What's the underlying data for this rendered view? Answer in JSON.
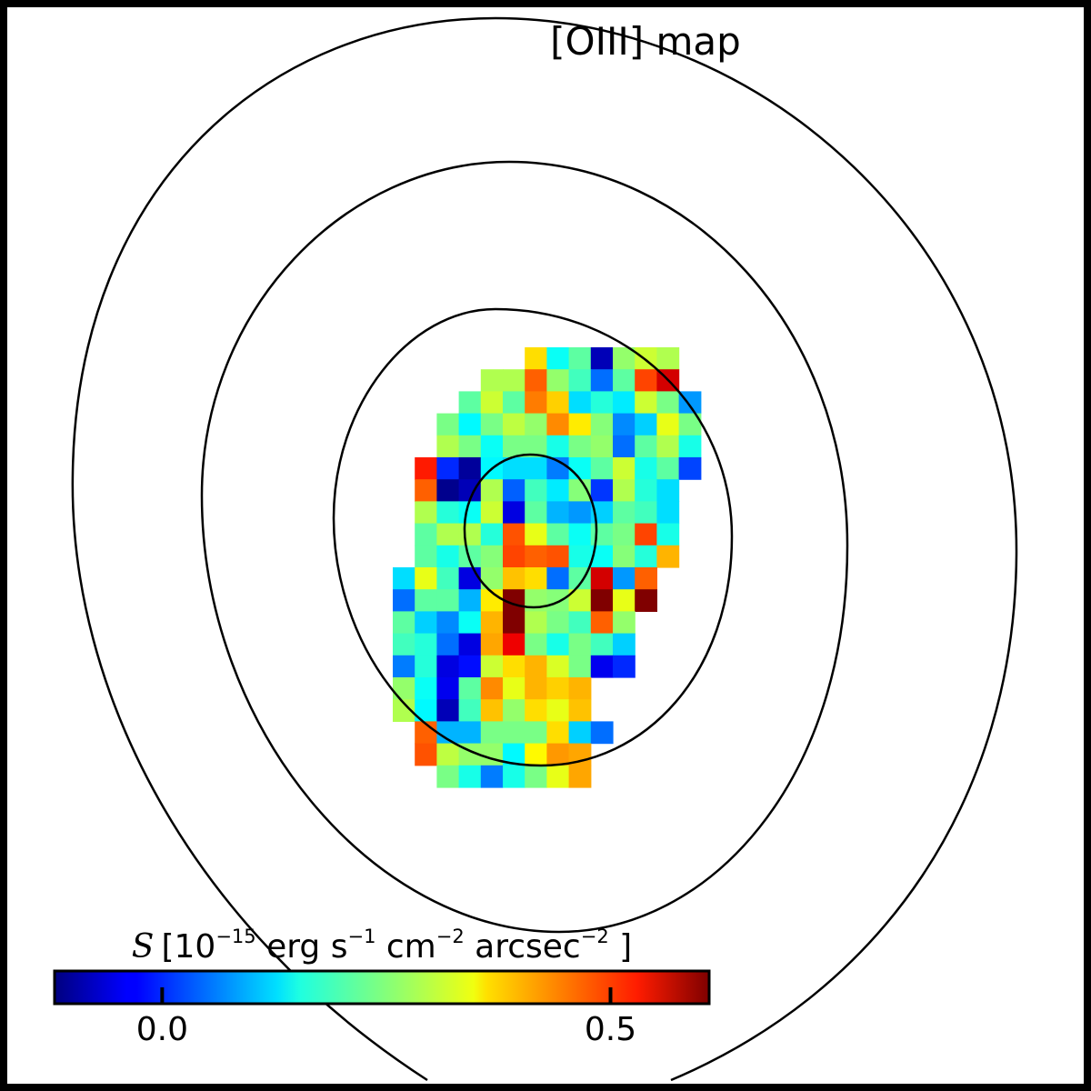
{
  "chart_data": {
    "type": "heatmap",
    "title": "[OIII] map",
    "colormap": "jet",
    "vmin": -0.12,
    "vmax": 0.61,
    "colorbar": {
      "label_parts": {
        "symbol": "S",
        "open": "[10",
        "exp1": "−15",
        "erg": " erg s",
        "exp2": "−1",
        "cm": "  cm",
        "exp3": "−2",
        "arcsec": "  arcsec",
        "exp4": "−2",
        "close": " ]"
      },
      "ticks": [
        0.0,
        0.5
      ],
      "tick_labels": [
        "0.0",
        "0.5"
      ]
    },
    "grid_origin": {
      "col": 0,
      "row": 0
    },
    "rows": [
      {
        "row": 0,
        "start": 6,
        "values": [
          0.36,
          0.16,
          0.22,
          -0.08,
          0.26,
          0.3,
          0.28
        ]
      },
      {
        "row": 1,
        "start": 4,
        "values": [
          0.28,
          0.28,
          0.45,
          0.26,
          0.2,
          0.05,
          0.22,
          0.47,
          0.55
        ]
      },
      {
        "row": 2,
        "start": 3,
        "values": [
          0.22,
          0.3,
          0.22,
          0.43,
          0.37,
          0.13,
          0.18,
          0.14,
          0.3,
          0.24,
          0.08
        ]
      },
      {
        "row": 3,
        "start": 2,
        "values": [
          0.24,
          0.15,
          0.24,
          0.29,
          0.26,
          0.42,
          0.35,
          0.25,
          0.07,
          0.12,
          0.32,
          0.24
        ]
      },
      {
        "row": 4,
        "start": 2,
        "values": [
          0.28,
          0.24,
          0.16,
          0.24,
          0.24,
          0.17,
          0.24,
          0.26,
          0.05,
          0.22,
          0.28,
          0.17
        ]
      },
      {
        "row": 5,
        "start": 1,
        "values": [
          0.5,
          0.0,
          -0.1,
          0.15,
          0.13,
          0.13,
          0.06,
          0.16,
          0.22,
          0.3,
          0.17,
          0.22,
          0.02
        ]
      },
      {
        "row": 6,
        "start": 1,
        "values": [
          0.45,
          -0.11,
          -0.08,
          0.28,
          0.04,
          0.2,
          0.14,
          0.25,
          0.01,
          0.28,
          0.18,
          0.13
        ]
      },
      {
        "row": 7,
        "start": 1,
        "values": [
          0.28,
          0.18,
          0.16,
          0.3,
          -0.05,
          0.22,
          0.1,
          0.08,
          0.12,
          0.22,
          0.2,
          0.13
        ]
      },
      {
        "row": 8,
        "start": 1,
        "values": [
          0.22,
          0.28,
          0.28,
          0.18,
          0.46,
          0.32,
          0.22,
          0.16,
          0.22,
          0.24,
          0.47,
          0.17
        ]
      },
      {
        "row": 9,
        "start": 1,
        "values": [
          0.22,
          0.17,
          0.22,
          0.25,
          0.47,
          0.45,
          0.46,
          0.17,
          0.16,
          0.25,
          0.18,
          0.39
        ]
      },
      {
        "row": 10,
        "start": 0,
        "values": [
          0.13,
          0.32,
          0.2,
          -0.05,
          0.26,
          0.38,
          0.36,
          0.05,
          0.22,
          0.55,
          0.08,
          0.45
        ]
      },
      {
        "row": 11,
        "start": 0,
        "values": [
          0.05,
          0.22,
          0.22,
          0.1,
          0.35,
          0.61,
          0.26,
          0.25,
          0.3,
          0.61,
          0.32,
          0.61
        ]
      },
      {
        "row": 12,
        "start": 0,
        "values": [
          0.22,
          0.12,
          0.07,
          0.16,
          0.39,
          0.61,
          0.28,
          0.24,
          0.2,
          0.45,
          0.26
        ]
      },
      {
        "row": 13,
        "start": 0,
        "values": [
          0.2,
          0.18,
          0.05,
          -0.05,
          0.4,
          0.53,
          0.24,
          0.17,
          0.24,
          0.2,
          0.12
        ]
      },
      {
        "row": 14,
        "start": 0,
        "values": [
          0.06,
          0.18,
          -0.05,
          -0.02,
          0.3,
          0.36,
          0.39,
          0.31,
          0.24,
          -0.04,
          0.0
        ]
      },
      {
        "row": 15,
        "start": 0,
        "values": [
          0.26,
          0.16,
          -0.04,
          0.22,
          0.42,
          0.32,
          0.39,
          0.37,
          0.39
        ]
      },
      {
        "row": 16,
        "start": 0,
        "values": [
          0.28,
          0.15,
          -0.08,
          0.2,
          0.38,
          0.26,
          0.36,
          0.32,
          0.38
        ]
      },
      {
        "row": 17,
        "start": 1,
        "values": [
          0.45,
          0.1,
          0.1,
          0.24,
          0.24,
          0.24,
          0.36,
          0.12,
          0.05
        ]
      },
      {
        "row": 18,
        "start": 1,
        "values": [
          0.46,
          0.29,
          0.26,
          0.26,
          0.15,
          0.34,
          0.41,
          0.4
        ]
      },
      {
        "row": 19,
        "start": 2,
        "values": [
          0.24,
          0.17,
          0.06,
          0.17,
          0.24,
          0.32,
          0.4
        ]
      }
    ],
    "contours": 4
  }
}
